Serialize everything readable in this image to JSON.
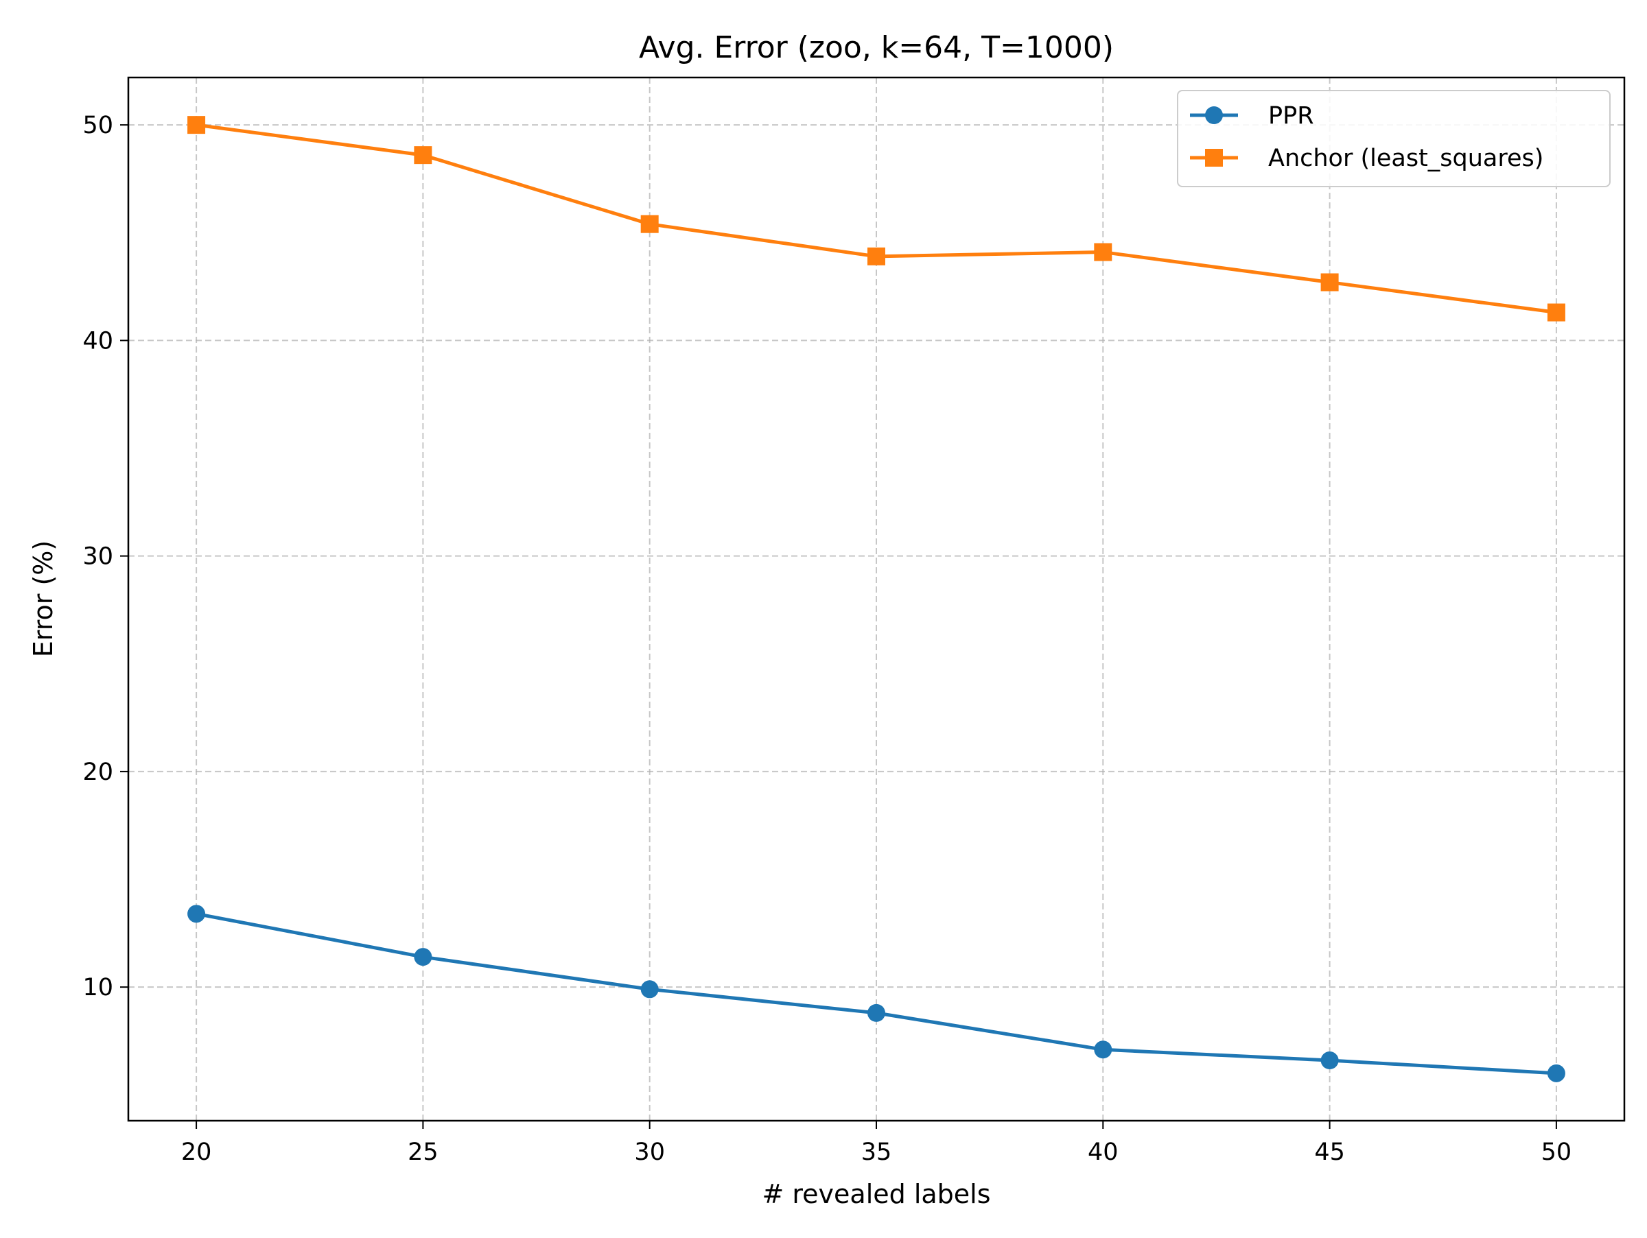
{
  "chart_data": {
    "type": "line",
    "title": "Avg. Error (zoo, k=64, T=1000)",
    "xlabel": "# revealed labels",
    "ylabel": "Error (%)",
    "x": [
      20,
      25,
      30,
      35,
      40,
      45,
      50
    ],
    "xlim": [
      18.5,
      51.5
    ],
    "ylim": [
      3.8,
      52.2
    ],
    "xticks": [
      20,
      25,
      30,
      35,
      40,
      45,
      50
    ],
    "yticks": [
      10,
      20,
      30,
      40,
      50
    ],
    "grid": true,
    "legend_position": "top-right",
    "series": [
      {
        "name": "PPR",
        "color": "#1f77b4",
        "marker": "circle",
        "values": [
          13.4,
          11.4,
          9.9,
          8.8,
          7.1,
          6.6,
          6.0
        ]
      },
      {
        "name": "Anchor (least_squares)",
        "color": "#ff7f0e",
        "marker": "square",
        "values": [
          50.0,
          48.6,
          45.4,
          43.9,
          44.1,
          42.7,
          41.3
        ]
      }
    ]
  }
}
